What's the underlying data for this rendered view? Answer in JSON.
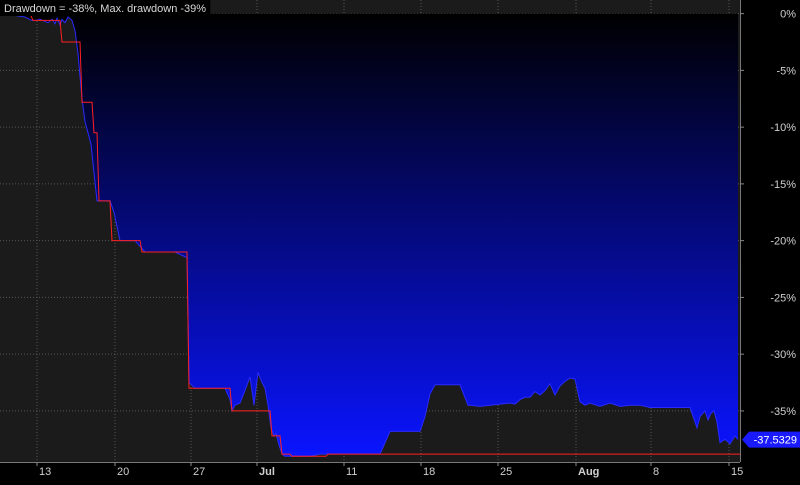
{
  "header": {
    "title": "Drawdown = -38%, Max. drawdown -39%"
  },
  "colors": {
    "background": "#000000",
    "fill_top": "#000000",
    "fill_bottom": "#0a14ff",
    "max_drawdown_line": "#ff2020",
    "grid": "#555555",
    "axis_text": "#cfcfcf",
    "badge": "#1a1aff"
  },
  "chart_data": {
    "type": "area",
    "title": "Drawdown = -38%, Max. drawdown -39%",
    "xlabel": "",
    "ylabel": "",
    "x_tick_labels": [
      "13",
      "20",
      "27",
      "Jul",
      "11",
      "18",
      "25",
      "Aug",
      "8",
      "15"
    ],
    "y_tick_labels": [
      "0%",
      "-5%",
      "-10%",
      "-15%",
      "-20%",
      "-25%",
      "-30%",
      "-35%"
    ],
    "y_ticks": [
      0,
      -5,
      -10,
      -15,
      -20,
      -25,
      -30,
      -35
    ],
    "ylim": [
      -39.5,
      1.2
    ],
    "x_range": [
      0,
      740
    ],
    "grid": true,
    "last_value_label": "-37.5329",
    "last_value": -37.5329,
    "series": [
      {
        "x": [
          0,
          10,
          25,
          32,
          36,
          40,
          48,
          52,
          55,
          57,
          60,
          62,
          65,
          68,
          72,
          75,
          78,
          80,
          82,
          85,
          88,
          91,
          94,
          97,
          100,
          105,
          110,
          114,
          120,
          125,
          128,
          130,
          135,
          140,
          145,
          155,
          165,
          175,
          187,
          189,
          195,
          205,
          215,
          225,
          230,
          232,
          235,
          240,
          245,
          250,
          254,
          258,
          262,
          265,
          268,
          271,
          274,
          276,
          279,
          282,
          285,
          290,
          300,
          310,
          320,
          340,
          360,
          380,
          390,
          400,
          410,
          420,
          425,
          430,
          435,
          440,
          450,
          460,
          468,
          470,
          480,
          490,
          500,
          510,
          515,
          520,
          525,
          530,
          535,
          540,
          545,
          550,
          555,
          560,
          565,
          570,
          575,
          580,
          585,
          590,
          600,
          610,
          620,
          630,
          640,
          650,
          660,
          670,
          680,
          690,
          697,
          700,
          705,
          708,
          711,
          714,
          717,
          720,
          725,
          730,
          735,
          738
        ],
        "values": [
          0,
          -0.1,
          -0.3,
          -0.6,
          -0.6,
          -0.5,
          -0.8,
          -0.5,
          -0.9,
          -0.4,
          -1.0,
          -0.5,
          -0.8,
          -0.3,
          -0.6,
          -1.5,
          -3.5,
          -5.5,
          -7.5,
          -9.5,
          -10.5,
          -11.5,
          -14.0,
          -16.5,
          -16.5,
          -16.5,
          -16.5,
          -17.5,
          -20.0,
          -20.0,
          -20.0,
          -20.0,
          -20.0,
          -20.5,
          -21.0,
          -21.0,
          -21.0,
          -21.0,
          -21.5,
          -32.5,
          -33.0,
          -33.0,
          -33.0,
          -33.0,
          -34.0,
          -35.0,
          -34.5,
          -34.3,
          -33.2,
          -32.0,
          -34.5,
          -31.6,
          -32.5,
          -33.0,
          -34.5,
          -36.5,
          -37.2,
          -37.0,
          -38.0,
          -38.8,
          -39.0,
          -39.0,
          -39.0,
          -39.0,
          -38.8,
          -38.8,
          -38.8,
          -38.8,
          -36.8,
          -36.8,
          -36.8,
          -36.8,
          -35.5,
          -33.5,
          -32.7,
          -32.7,
          -32.7,
          -32.7,
          -34.5,
          -34.5,
          -34.6,
          -34.5,
          -34.4,
          -34.3,
          -34.4,
          -34.0,
          -33.8,
          -33.8,
          -33.3,
          -33.6,
          -33.2,
          -32.6,
          -33.6,
          -32.8,
          -32.4,
          -32.1,
          -32.2,
          -34.2,
          -34.5,
          -34.3,
          -34.6,
          -34.3,
          -34.6,
          -34.5,
          -34.5,
          -34.7,
          -34.7,
          -34.7,
          -34.7,
          -34.7,
          -36.5,
          -35.5,
          -35.0,
          -35.8,
          -35.2,
          -35.0,
          -36.0,
          -37.8,
          -37.5,
          -37.9,
          -37.2,
          -37.53
        ]
      },
      {
        "x": [
          0,
          30,
          33,
          60,
          62,
          80,
          82,
          92,
          94,
          97,
          99,
          110,
          112,
          140,
          142,
          160,
          162,
          187,
          189,
          205,
          207,
          230,
          232,
          270,
          272,
          280,
          282,
          290,
          292,
          326,
          328,
          740
        ],
        "values": [
          0,
          0,
          -0.6,
          -0.6,
          -2.5,
          -2.5,
          -7.8,
          -7.8,
          -10.5,
          -10.5,
          -16.5,
          -16.5,
          -20.0,
          -20.0,
          -21.0,
          -21.0,
          -21.0,
          -21.0,
          -33.0,
          -33.0,
          -33.0,
          -33.0,
          -35.0,
          -35.0,
          -37.2,
          -37.2,
          -38.8,
          -38.8,
          -39.0,
          -39.0,
          -38.8,
          -38.8
        ]
      }
    ]
  }
}
